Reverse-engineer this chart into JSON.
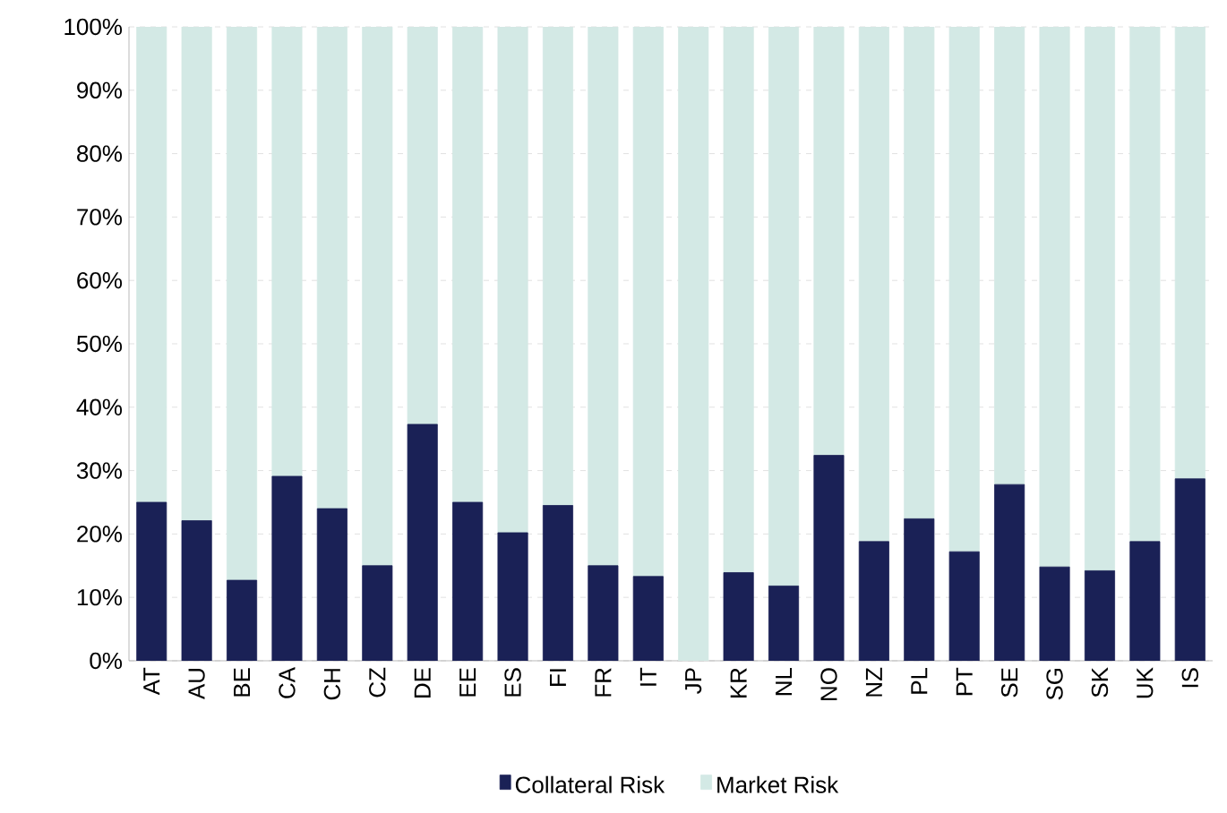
{
  "chart_data": {
    "type": "bar",
    "stacked": true,
    "categories": [
      "AT",
      "AU",
      "BE",
      "CA",
      "CH",
      "CZ",
      "DE",
      "EE",
      "ES",
      "FI",
      "FR",
      "IT",
      "JP",
      "KR",
      "NL",
      "NO",
      "NZ",
      "PL",
      "PT",
      "SE",
      "SG",
      "SK",
      "UK",
      "IS"
    ],
    "series": [
      {
        "name": "Collateral Risk",
        "color": "#1a2156",
        "values": [
          25.0,
          22.1,
          12.7,
          29.1,
          24.0,
          15.0,
          37.3,
          25.0,
          20.2,
          24.5,
          15.0,
          13.3,
          0,
          13.9,
          11.8,
          32.4,
          18.8,
          22.4,
          17.2,
          27.8,
          14.8,
          14.2,
          18.8,
          28.7
        ]
      },
      {
        "name": "Market Risk",
        "color": "#d3e9e5",
        "values": [
          75.0,
          77.9,
          87.3,
          70.9,
          76.0,
          85.0,
          62.7,
          75.0,
          79.8,
          75.5,
          85.0,
          86.7,
          100,
          86.1,
          88.2,
          67.6,
          81.2,
          77.6,
          82.8,
          72.2,
          85.2,
          85.8,
          81.2,
          71.3
        ]
      }
    ],
    "ylim": [
      0,
      100
    ],
    "yticks": [
      {
        "value": 0,
        "label": "0%"
      },
      {
        "value": 10,
        "label": "10%"
      },
      {
        "value": 20,
        "label": "20%"
      },
      {
        "value": 30,
        "label": "30%"
      },
      {
        "value": 40,
        "label": "40%"
      },
      {
        "value": 50,
        "label": "50%"
      },
      {
        "value": 60,
        "label": "60%"
      },
      {
        "value": 70,
        "label": "70%"
      },
      {
        "value": 80,
        "label": "80%"
      },
      {
        "value": 90,
        "label": "90%"
      },
      {
        "value": 100,
        "label": "100%"
      }
    ],
    "grid": "y",
    "legend": "bottom"
  }
}
